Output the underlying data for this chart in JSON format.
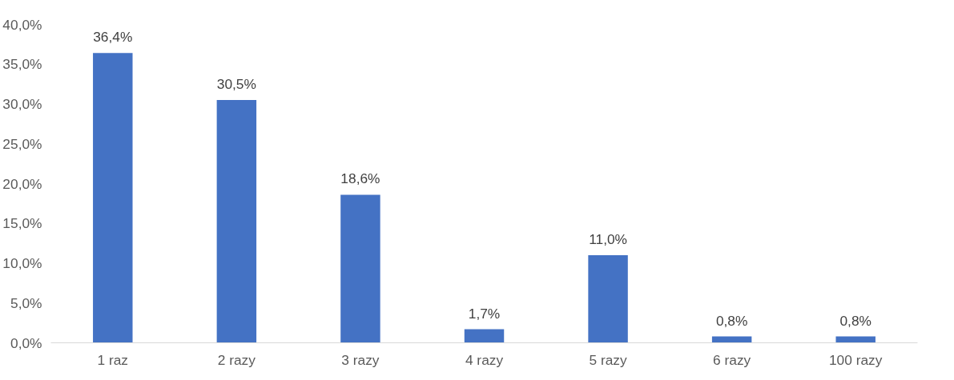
{
  "chart_data": {
    "type": "bar",
    "categories": [
      "1 raz",
      "2 razy",
      "3 razy",
      "4 razy",
      "5 razy",
      "6 razy",
      "100 razy"
    ],
    "values": [
      36.4,
      30.5,
      18.6,
      1.7,
      11.0,
      0.8,
      0.8
    ],
    "value_labels": [
      "36,4%",
      "30,5%",
      "18,6%",
      "1,7%",
      "11,0%",
      "0,8%",
      "0,8%"
    ],
    "color": "#4472c4",
    "ylim": [
      0,
      40
    ],
    "yticks": [
      {
        "value": 0,
        "label": "0,0%"
      },
      {
        "value": 5,
        "label": "5,0%"
      },
      {
        "value": 10,
        "label": "10,0%"
      },
      {
        "value": 15,
        "label": "15,0%"
      },
      {
        "value": 20,
        "label": "20,0%"
      },
      {
        "value": 25,
        "label": "25,0%"
      },
      {
        "value": 30,
        "label": "30,0%"
      },
      {
        "value": 35,
        "label": "35,0%"
      },
      {
        "value": 40,
        "label": "40,0%"
      }
    ],
    "grid": false
  }
}
